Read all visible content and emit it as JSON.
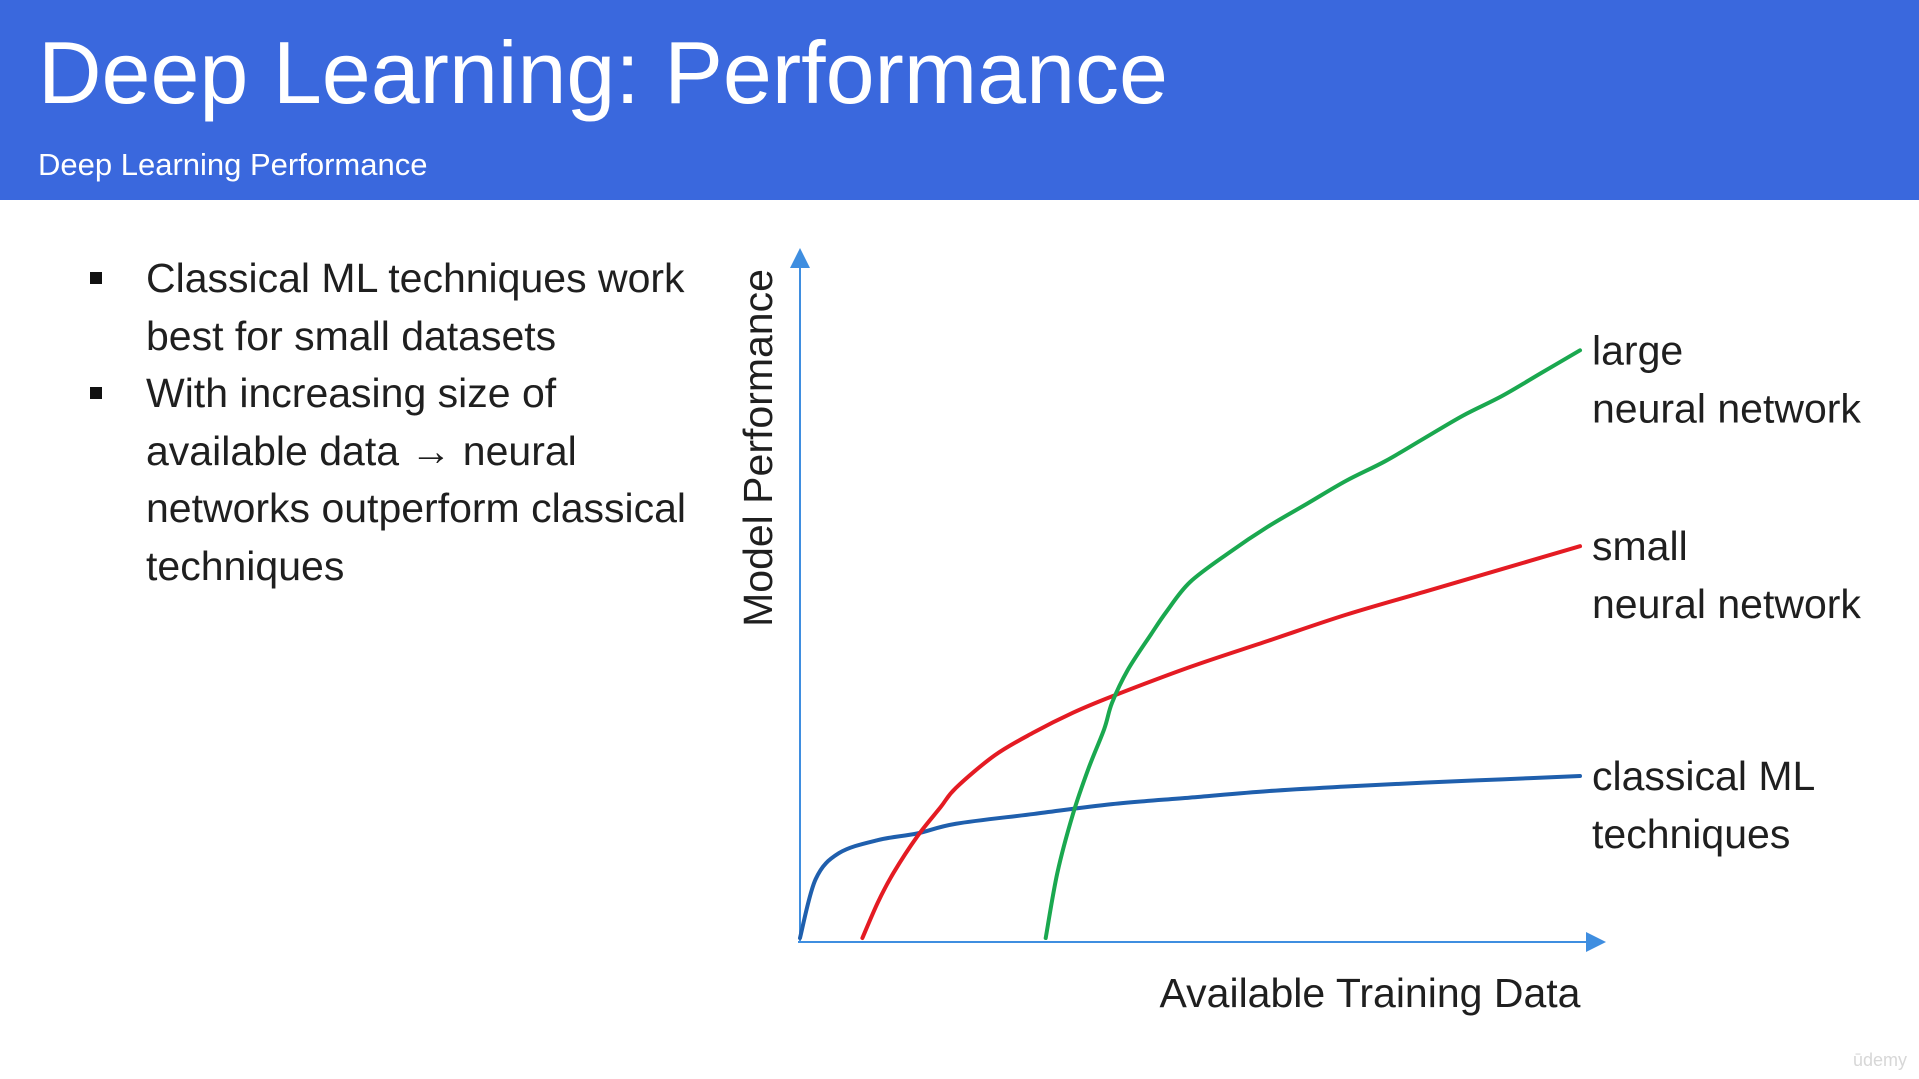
{
  "slide": {
    "title": "Deep Learning: Performance",
    "subtitle": "Deep Learning Performance",
    "bullets": [
      "Classical ML techniques work best for small datasets",
      "With increasing size of available data → neural networks outperform classical techniques"
    ],
    "watermark": "ūdemy"
  },
  "colors": {
    "header": "#3a68dd",
    "axis": "#3f8ee0",
    "large_neural_network": "#1aa84f",
    "small_neural_network": "#e41b23",
    "classical_ml": "#1f5fad"
  },
  "chart_data": {
    "type": "line",
    "xlabel": "Available Training Data",
    "ylabel": "Model Performance",
    "xlim": [
      0,
      100
    ],
    "ylim": [
      0,
      100
    ],
    "grid": false,
    "legend": "inline labels at right end of each line",
    "series": [
      {
        "name": "classical ML techniques",
        "label_lines": [
          "classical ML",
          "techniques"
        ],
        "x": [
          0,
          2,
          5,
          10,
          15,
          20,
          30,
          40,
          50,
          60,
          70,
          80,
          90,
          100
        ],
        "y": [
          0,
          9,
          13,
          15,
          16,
          17.5,
          19,
          20.5,
          21.5,
          22.5,
          23.2,
          23.8,
          24.3,
          24.8
        ]
      },
      {
        "name": "small neural network",
        "label_lines": [
          "small",
          "neural network"
        ],
        "x": [
          8,
          10,
          12,
          15,
          18,
          20,
          25,
          30,
          35,
          40,
          50,
          60,
          70,
          80,
          90,
          100
        ],
        "y": [
          0,
          5.5,
          10,
          15.5,
          20,
          23,
          28,
          31.5,
          34.5,
          37,
          41.5,
          45.5,
          49.5,
          53,
          56.5,
          60
        ]
      },
      {
        "name": "large neural network",
        "label_lines": [
          "large",
          "neural network"
        ],
        "x": [
          31.5,
          33,
          35,
          37,
          39,
          40,
          42,
          45,
          47,
          50,
          55,
          60,
          65,
          70,
          75,
          80,
          85,
          90,
          95,
          100
        ],
        "y": [
          0,
          10,
          19,
          26,
          32,
          36,
          41,
          46.5,
          50,
          54.5,
          59,
          63,
          66.5,
          70,
          73,
          76.5,
          80,
          83,
          86.5,
          90
        ]
      }
    ]
  }
}
